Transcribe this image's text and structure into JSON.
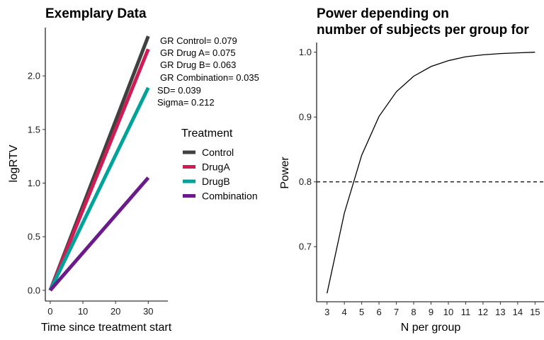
{
  "chart_data": [
    {
      "type": "line",
      "title": "Exemplary Data",
      "xlabel": "Time since treatment start",
      "ylabel": "logRTV",
      "xlim": [
        -1.5,
        36
      ],
      "ylim": [
        -0.1,
        2.45
      ],
      "xticks": [
        0,
        10,
        20,
        30
      ],
      "yticks": [
        0.0,
        0.5,
        1.0,
        1.5,
        2.0
      ],
      "ytick_labels": [
        "0.0",
        "0.5",
        "1.0",
        "1.5",
        "2.0"
      ],
      "series": [
        {
          "name": "Control",
          "x": [
            0,
            30
          ],
          "values": [
            0,
            2.37
          ],
          "color": "#404040"
        },
        {
          "name": "DrugA",
          "x": [
            0,
            30
          ],
          "values": [
            0,
            2.25
          ],
          "color": "#d01c55"
        },
        {
          "name": "DrugB",
          "x": [
            0,
            30
          ],
          "values": [
            0,
            1.89
          ],
          "color": "#00a39a"
        },
        {
          "name": "Combination",
          "x": [
            0,
            30
          ],
          "values": [
            0,
            1.05
          ],
          "color": "#6a1a8a"
        }
      ],
      "annotations": [
        "GR Control= 0.079",
        "GR Drug A= 0.075",
        "GR Drug B= 0.063",
        " GR Combination= 0.035",
        "SD= 0.039",
        "Sigma= 0.212"
      ],
      "legend": {
        "title": "Treatment",
        "items": [
          "Control",
          "DrugA",
          "DrugB",
          "Combination"
        ]
      }
    },
    {
      "type": "line",
      "title": "Power depending on",
      "title_line2": "number of subjects per group for",
      "xlabel": "N per group",
      "ylabel": "Power",
      "xlim": [
        2.4,
        15.6
      ],
      "ylim": [
        0.615,
        1.015
      ],
      "xticks": [
        3,
        4,
        5,
        6,
        7,
        8,
        9,
        10,
        11,
        12,
        13,
        14,
        15
      ],
      "yticks": [
        0.7,
        0.8,
        0.9,
        1.0
      ],
      "ytick_labels": [
        "0.7",
        "0.8",
        "0.9",
        "1.0"
      ],
      "series": [
        {
          "name": "Power",
          "x": [
            3,
            4,
            5,
            6,
            7,
            8,
            9,
            10,
            11,
            12,
            13,
            14,
            15
          ],
          "values": [
            0.628,
            0.752,
            0.841,
            0.901,
            0.939,
            0.963,
            0.978,
            0.987,
            0.993,
            0.996,
            0.998,
            0.999,
            1.0
          ],
          "color": "#000000"
        }
      ],
      "reference_line": {
        "y": 0.8,
        "style": "dashed"
      }
    }
  ]
}
